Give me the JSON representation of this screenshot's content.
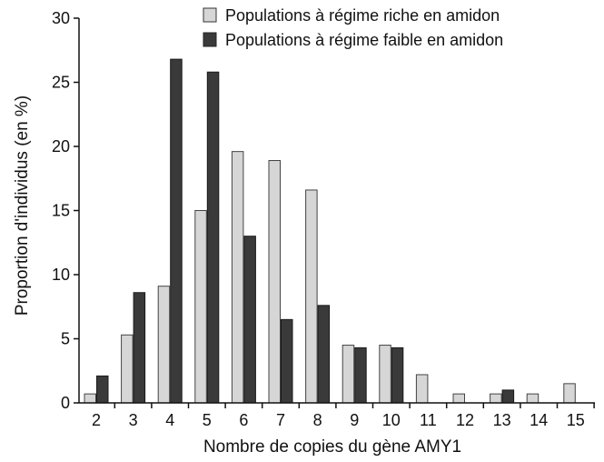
{
  "chart_data": {
    "type": "bar",
    "title": "",
    "xlabel": "Nombre de copies du gène AMY1",
    "ylabel": "Proportion d'individus (en %)",
    "ylim": [
      0,
      30
    ],
    "yticks": [
      "0",
      "5",
      "10",
      "15",
      "20",
      "25",
      "30"
    ],
    "categories": [
      "2",
      "3",
      "4",
      "5",
      "6",
      "7",
      "8",
      "9",
      "10",
      "11",
      "12",
      "13",
      "14",
      "15"
    ],
    "legend_position": "top-right",
    "grid": false,
    "series": [
      {
        "name": "Populations à régime riche en amidon",
        "color": "#d6d6d6",
        "values": [
          0.7,
          5.3,
          9.1,
          15.0,
          19.6,
          18.9,
          16.6,
          4.5,
          4.5,
          2.2,
          0.7,
          0.7,
          0.7,
          1.5
        ]
      },
      {
        "name": "Populations à régime faible en amidon",
        "color": "#3a3a3a",
        "values": [
          2.1,
          8.6,
          26.8,
          25.8,
          13.0,
          6.5,
          7.6,
          4.3,
          4.3,
          null,
          null,
          1.0,
          null,
          null
        ]
      }
    ]
  }
}
